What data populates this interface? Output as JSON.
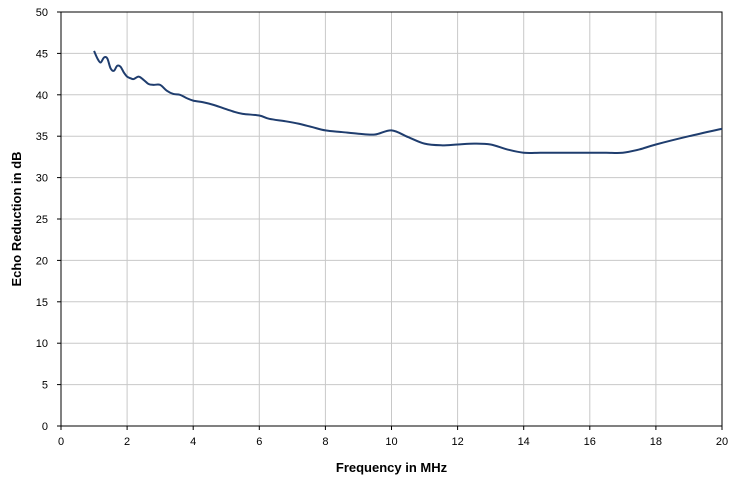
{
  "chart_data": {
    "type": "line",
    "title": "",
    "xlabel": "Frequency in MHz",
    "ylabel": "Echo Reduction in dB",
    "xlim": [
      0,
      20
    ],
    "ylim": [
      0,
      50
    ],
    "xticks": [
      0,
      2,
      4,
      6,
      8,
      10,
      12,
      14,
      16,
      18,
      20
    ],
    "yticks": [
      0,
      5,
      10,
      15,
      20,
      25,
      30,
      35,
      40,
      45,
      50
    ],
    "grid": true,
    "legend": "none",
    "series": [
      {
        "color": "#1f3d6e",
        "x": [
          1.0,
          1.1,
          1.2,
          1.3,
          1.4,
          1.5,
          1.6,
          1.7,
          1.8,
          1.9,
          2.0,
          2.1,
          2.2,
          2.35,
          2.5,
          2.65,
          2.8,
          3.0,
          3.2,
          3.4,
          3.6,
          3.8,
          4.0,
          4.3,
          4.6,
          4.9,
          5.2,
          5.5,
          6.0,
          6.3,
          6.8,
          7.2,
          7.6,
          8.0,
          8.5,
          9.0,
          9.5,
          10.0,
          10.5,
          11.0,
          11.5,
          12.0,
          12.5,
          13.0,
          13.5,
          14.0,
          14.5,
          15.0,
          15.5,
          16.0,
          16.5,
          17.0,
          17.5,
          18.0,
          19.0,
          20.0
        ],
        "y": [
          45.3,
          44.4,
          43.9,
          44.5,
          44.4,
          43.2,
          42.9,
          43.5,
          43.4,
          42.7,
          42.2,
          42.0,
          41.9,
          42.2,
          41.8,
          41.3,
          41.2,
          41.2,
          40.5,
          40.1,
          40.0,
          39.6,
          39.3,
          39.1,
          38.8,
          38.4,
          38.0,
          37.7,
          37.5,
          37.1,
          36.8,
          36.5,
          36.1,
          35.7,
          35.5,
          35.3,
          35.2,
          35.7,
          34.9,
          34.1,
          33.9,
          34.0,
          34.1,
          34.0,
          33.4,
          33.0,
          33.0,
          33.0,
          33.0,
          33.0,
          33.0,
          33.0,
          33.4,
          34.0,
          35.0,
          35.9
        ]
      }
    ]
  }
}
